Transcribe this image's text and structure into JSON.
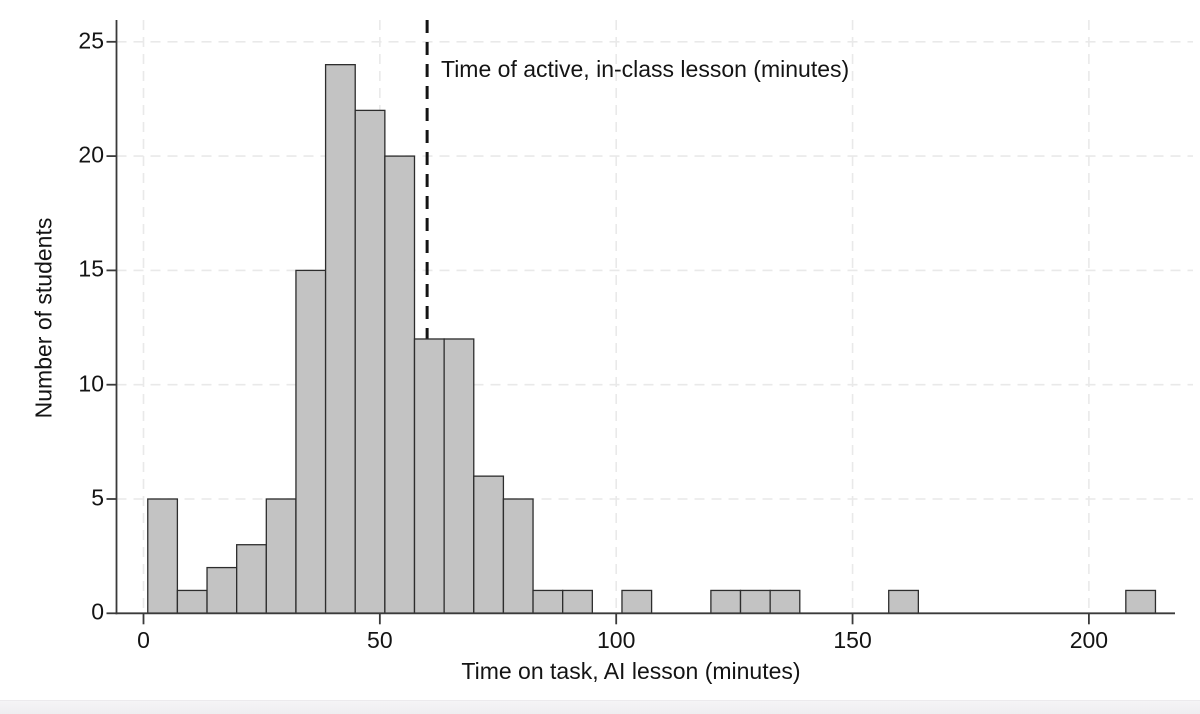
{
  "window": {
    "background": "#ffffff",
    "bottom_strip_color": "#f1f0f2"
  },
  "chart_data": {
    "type": "bar",
    "subtype": "histogram",
    "title": "",
    "xlabel": "Time on task, AI lesson (minutes)",
    "ylabel": "Number of students",
    "x_ticks": [
      0,
      50,
      100,
      150,
      200
    ],
    "y_ticks": [
      0,
      5,
      10,
      15,
      20,
      25
    ],
    "xlim": [
      -6,
      218
    ],
    "ylim": [
      0,
      26.2
    ],
    "grid": {
      "horizontal": true,
      "vertical": true,
      "style": "dashed",
      "color": "#e9e9e9"
    },
    "histogram": {
      "bin_start_minutes": 0.9,
      "bin_width_minutes": 6.27,
      "counts": [
        5,
        1,
        2,
        3,
        5,
        15,
        24,
        22,
        20,
        12,
        12,
        6,
        5,
        1,
        1,
        0,
        1,
        0,
        0,
        1,
        1,
        1,
        0,
        0,
        0,
        1,
        0,
        0,
        0,
        0,
        0,
        0,
        0,
        1
      ]
    },
    "reference_line": {
      "x": 60,
      "style": "dashed",
      "label": "Time of active, in-class lesson (minutes)"
    },
    "colors": {
      "bar_fill": "#c3c3c3",
      "bar_edge": "#2d2d2d",
      "axis": "#3a3a3a",
      "grid": "#e9e9e9",
      "reference_line": "#141414",
      "text": "#141414"
    }
  }
}
